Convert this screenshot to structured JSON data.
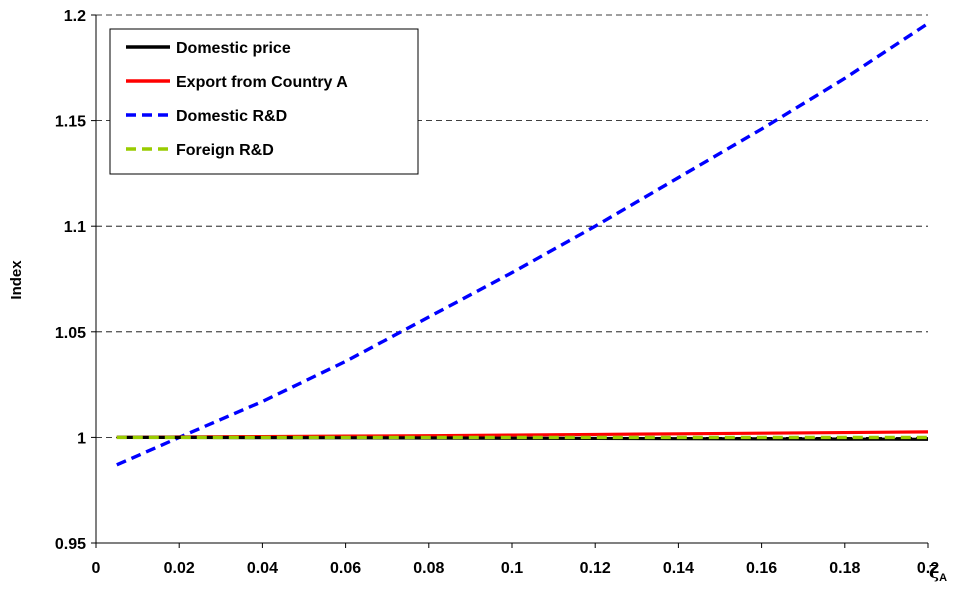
{
  "chart_data": {
    "type": "line",
    "title": "",
    "xlabel": "ζA",
    "xlabel_symbol": "ζ",
    "xlabel_subscript": "A",
    "ylabel": "Index",
    "xlim": [
      0,
      0.2
    ],
    "ylim": [
      0.95,
      1.2
    ],
    "x_ticks": [
      "0",
      "0.02",
      "0.04",
      "0.06",
      "0.08",
      "0.1",
      "0.12",
      "0.14",
      "0.16",
      "0.18",
      "0.2"
    ],
    "y_ticks": [
      "0.95",
      "1",
      "1.05",
      "1.1",
      "1.15",
      "1.2"
    ],
    "grid": "horizontal dashed",
    "legend_position": "top-left",
    "x": [
      0.005,
      0.02,
      0.04,
      0.06,
      0.08,
      0.1,
      0.12,
      0.14,
      0.16,
      0.18,
      0.2
    ],
    "series": [
      {
        "name": "Domestic price",
        "color": "#000000",
        "style": "solid",
        "values": [
          1.0,
          1.0,
          0.9999,
          0.9998,
          0.9997,
          0.9996,
          0.9995,
          0.9994,
          0.9993,
          0.9992,
          0.9991
        ]
      },
      {
        "name": "Export from Country A",
        "color": "#ff0000",
        "style": "solid",
        "values": [
          1.0,
          1.0002,
          1.0004,
          1.0006,
          1.0008,
          1.0011,
          1.0014,
          1.0017,
          1.002,
          1.0023,
          1.0026
        ]
      },
      {
        "name": "Domestic R&D",
        "color": "#0000ff",
        "style": "dashed",
        "values": [
          0.987,
          1.0,
          1.017,
          1.036,
          1.057,
          1.078,
          1.1,
          1.123,
          1.146,
          1.17,
          1.196
        ]
      },
      {
        "name": "Foreign R&D",
        "color": "#99cc00",
        "style": "dashed",
        "values": [
          1.0,
          1.0,
          1.0,
          1.0,
          1.0,
          1.0,
          1.0,
          1.0,
          1.0,
          1.0,
          1.0
        ]
      }
    ]
  }
}
